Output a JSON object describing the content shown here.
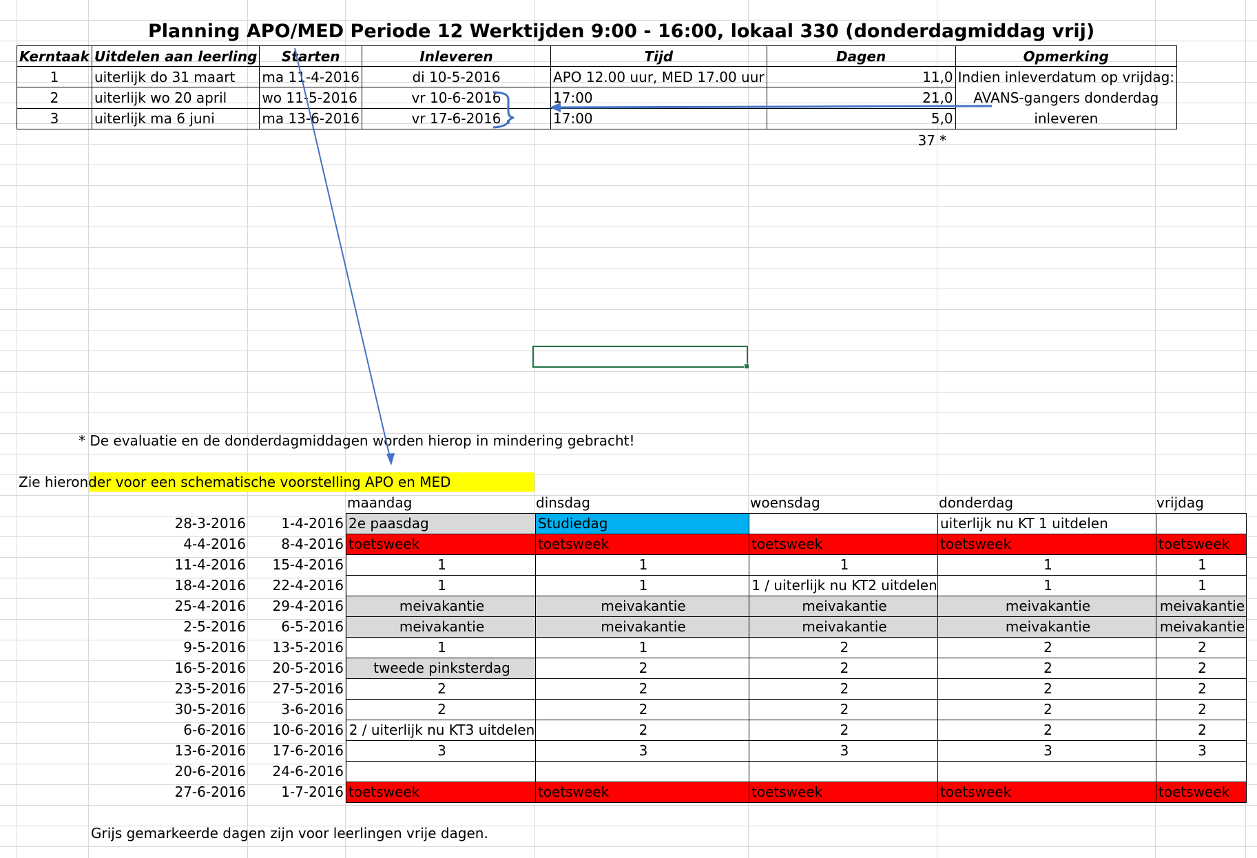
{
  "title": "Planning APO/MED Periode 12 Werktijden 9:00 - 16:00, lokaal 330 (donderdagmiddag vrij)",
  "top_table": {
    "headers": [
      "Kerntaak",
      "Uitdelen aan leerling",
      "Starten",
      "Inleveren",
      "Tijd",
      "Dagen",
      "Opmerking"
    ],
    "rows": [
      {
        "kerntaak": "1",
        "uitdelen": "uiterlijk do 31 maart",
        "starten": "ma 11-4-2016",
        "inleveren": "di 10-5-2016",
        "tijd": "APO 12.00 uur, MED 17.00 uur",
        "dagen": "11,0"
      },
      {
        "kerntaak": "2",
        "uitdelen": "uiterlijk wo 20 april",
        "starten": "wo 11-5-2016",
        "inleveren": "vr 10-6-2016",
        "tijd": "17:00",
        "dagen": "21,0"
      },
      {
        "kerntaak": "3",
        "uitdelen": "uiterlijk ma 6 juni",
        "starten": "ma 13-6-2016",
        "inleveren": "vr 17-6-2016",
        "tijd": "17:00",
        "dagen": "5,0"
      }
    ],
    "opmerking_lines": [
      "Indien inleverdatum op vrijdag:",
      "AVANS-gangers donderdag",
      "inleveren"
    ],
    "total": "37",
    "total_mark": "*"
  },
  "footnote": "* De evaluatie en de donderdagmiddagen worden hierop in mindering gebracht!",
  "schema_label": "Zie hieronder voor een schematische voorstelling APO en MED",
  "schedule": {
    "days": [
      "maandag",
      "dinsdag",
      "woensdag",
      "donderdag",
      "vrijdag"
    ],
    "rows": [
      {
        "from": "28-3-2016",
        "to": "1-4-2016",
        "cells": [
          {
            "t": "2e paasdag",
            "c": "gray",
            "a": "left"
          },
          {
            "t": "Studiedag",
            "c": "blue",
            "a": "left"
          },
          {
            "t": "",
            "c": "",
            "a": "left"
          },
          {
            "t": "uiterlijk nu KT 1 uitdelen",
            "c": "",
            "a": "left"
          },
          {
            "t": "",
            "c": "",
            "a": "left"
          }
        ]
      },
      {
        "from": "4-4-2016",
        "to": "8-4-2016",
        "cells": [
          {
            "t": "toetsweek",
            "c": "red",
            "a": "left"
          },
          {
            "t": "toetsweek",
            "c": "red",
            "a": "left"
          },
          {
            "t": "toetsweek",
            "c": "red",
            "a": "left"
          },
          {
            "t": "toetsweek",
            "c": "red",
            "a": "left"
          },
          {
            "t": "toetsweek",
            "c": "red",
            "a": "left"
          }
        ]
      },
      {
        "from": "11-4-2016",
        "to": "15-4-2016",
        "cells": [
          {
            "t": "1",
            "c": "",
            "a": "center"
          },
          {
            "t": "1",
            "c": "",
            "a": "center"
          },
          {
            "t": "1",
            "c": "",
            "a": "center"
          },
          {
            "t": "1",
            "c": "",
            "a": "center"
          },
          {
            "t": "1",
            "c": "",
            "a": "center"
          }
        ]
      },
      {
        "from": "18-4-2016",
        "to": "22-4-2016",
        "cells": [
          {
            "t": "1",
            "c": "",
            "a": "center"
          },
          {
            "t": "1",
            "c": "",
            "a": "center"
          },
          {
            "t": "1 / uiterlijk nu KT2 uitdelen",
            "c": "",
            "a": "center"
          },
          {
            "t": "1",
            "c": "",
            "a": "center"
          },
          {
            "t": "1",
            "c": "",
            "a": "center"
          }
        ]
      },
      {
        "from": "25-4-2016",
        "to": "29-4-2016",
        "cells": [
          {
            "t": "meivakantie",
            "c": "gray",
            "a": "center"
          },
          {
            "t": "meivakantie",
            "c": "gray",
            "a": "center"
          },
          {
            "t": "meivakantie",
            "c": "gray",
            "a": "center"
          },
          {
            "t": "meivakantie",
            "c": "gray",
            "a": "center"
          },
          {
            "t": "meivakantie",
            "c": "gray",
            "a": "center"
          }
        ]
      },
      {
        "from": "2-5-2016",
        "to": "6-5-2016",
        "cells": [
          {
            "t": "meivakantie",
            "c": "gray",
            "a": "center"
          },
          {
            "t": "meivakantie",
            "c": "gray",
            "a": "center"
          },
          {
            "t": "meivakantie",
            "c": "gray",
            "a": "center"
          },
          {
            "t": "meivakantie",
            "c": "gray",
            "a": "center"
          },
          {
            "t": "meivakantie",
            "c": "gray",
            "a": "center"
          }
        ]
      },
      {
        "from": "9-5-2016",
        "to": "13-5-2016",
        "cells": [
          {
            "t": "1",
            "c": "",
            "a": "center"
          },
          {
            "t": "1",
            "c": "",
            "a": "center"
          },
          {
            "t": "2",
            "c": "",
            "a": "center"
          },
          {
            "t": "2",
            "c": "",
            "a": "center"
          },
          {
            "t": "2",
            "c": "",
            "a": "center"
          }
        ]
      },
      {
        "from": "16-5-2016",
        "to": "20-5-2016",
        "cells": [
          {
            "t": "tweede pinksterdag",
            "c": "gray",
            "a": "center"
          },
          {
            "t": "2",
            "c": "",
            "a": "center"
          },
          {
            "t": "2",
            "c": "",
            "a": "center"
          },
          {
            "t": "2",
            "c": "",
            "a": "center"
          },
          {
            "t": "2",
            "c": "",
            "a": "center"
          }
        ]
      },
      {
        "from": "23-5-2016",
        "to": "27-5-2016",
        "cells": [
          {
            "t": "2",
            "c": "",
            "a": "center"
          },
          {
            "t": "2",
            "c": "",
            "a": "center"
          },
          {
            "t": "2",
            "c": "",
            "a": "center"
          },
          {
            "t": "2",
            "c": "",
            "a": "center"
          },
          {
            "t": "2",
            "c": "",
            "a": "center"
          }
        ]
      },
      {
        "from": "30-5-2016",
        "to": "3-6-2016",
        "cells": [
          {
            "t": "2",
            "c": "",
            "a": "center"
          },
          {
            "t": "2",
            "c": "",
            "a": "center"
          },
          {
            "t": "2",
            "c": "",
            "a": "center"
          },
          {
            "t": "2",
            "c": "",
            "a": "center"
          },
          {
            "t": "2",
            "c": "",
            "a": "center"
          }
        ]
      },
      {
        "from": "6-6-2016",
        "to": "10-6-2016",
        "cells": [
          {
            "t": "2 / uiterlijk nu KT3 uitdelen",
            "c": "",
            "a": "center"
          },
          {
            "t": "2",
            "c": "",
            "a": "center"
          },
          {
            "t": "2",
            "c": "",
            "a": "center"
          },
          {
            "t": "2",
            "c": "",
            "a": "center"
          },
          {
            "t": "2",
            "c": "",
            "a": "center"
          }
        ]
      },
      {
        "from": "13-6-2016",
        "to": "17-6-2016",
        "cells": [
          {
            "t": "3",
            "c": "",
            "a": "center"
          },
          {
            "t": "3",
            "c": "",
            "a": "center"
          },
          {
            "t": "3",
            "c": "",
            "a": "center"
          },
          {
            "t": "3",
            "c": "",
            "a": "center"
          },
          {
            "t": "3",
            "c": "",
            "a": "center"
          }
        ]
      },
      {
        "from": "20-6-2016",
        "to": "24-6-2016",
        "cells": [
          {
            "t": "",
            "c": "",
            "a": "center"
          },
          {
            "t": "",
            "c": "",
            "a": "center"
          },
          {
            "t": "",
            "c": "",
            "a": "center"
          },
          {
            "t": "",
            "c": "",
            "a": "center"
          },
          {
            "t": "",
            "c": "",
            "a": "center"
          }
        ]
      },
      {
        "from": "27-6-2016",
        "to": "1-7-2016",
        "cells": [
          {
            "t": "toetsweek",
            "c": "red",
            "a": "left"
          },
          {
            "t": "toetsweek",
            "c": "red",
            "a": "left"
          },
          {
            "t": "toetsweek",
            "c": "red",
            "a": "left"
          },
          {
            "t": "toetsweek",
            "c": "red",
            "a": "left"
          },
          {
            "t": "toetsweek",
            "c": "red",
            "a": "left"
          }
        ]
      }
    ]
  },
  "legend_note": "Grijs  gemarkeerde dagen zijn voor leerlingen vrije dagen.",
  "colors": {
    "gray": "#d9d9d9",
    "red": "#ff0000",
    "blue": "#00b0f0",
    "yellow": "#ffff00",
    "arrow": "#4472c4",
    "selection": "#217346"
  }
}
